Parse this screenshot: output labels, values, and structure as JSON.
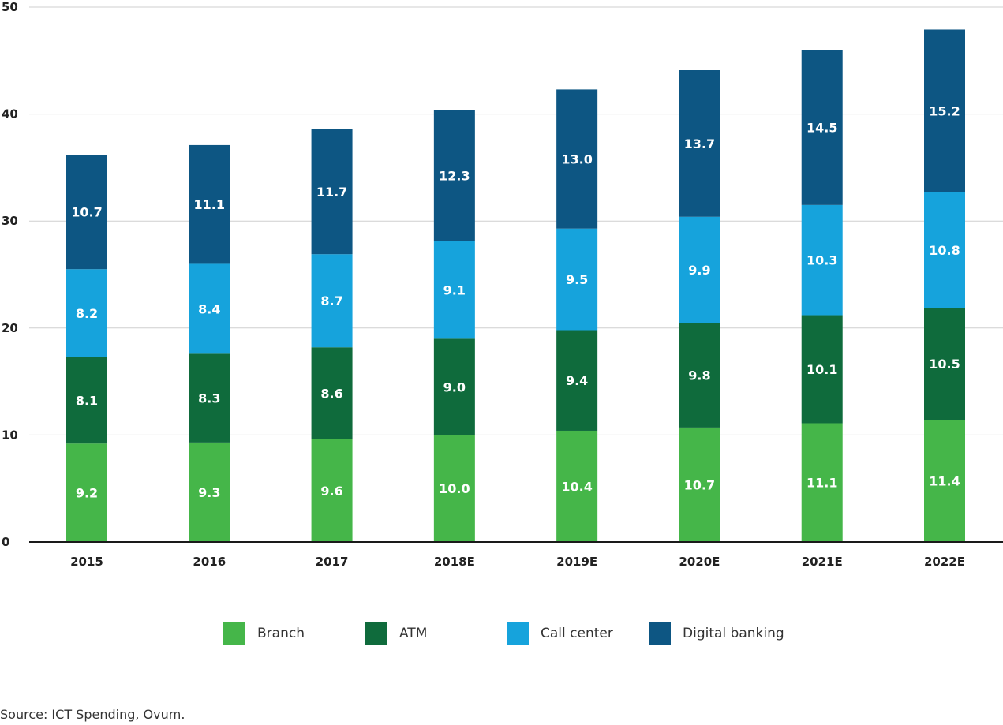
{
  "chart_data": {
    "type": "bar",
    "stacked": true,
    "title": "",
    "xlabel": "",
    "ylabel": "",
    "ylim": [
      0,
      50
    ],
    "yticks": [
      0,
      10,
      20,
      30,
      40,
      50
    ],
    "grid": true,
    "categories": [
      "2015",
      "2016",
      "2017",
      "2018E",
      "2019E",
      "2020E",
      "2021E",
      "2022E"
    ],
    "series": [
      {
        "name": "Branch",
        "color": "#45b649",
        "values": [
          9.2,
          9.3,
          9.6,
          10.0,
          10.4,
          10.7,
          11.1,
          11.4
        ]
      },
      {
        "name": "ATM",
        "color": "#0f6b3c",
        "values": [
          8.1,
          8.3,
          8.6,
          9.0,
          9.4,
          9.8,
          10.1,
          10.5
        ]
      },
      {
        "name": "Call center",
        "color": "#16a3dc",
        "values": [
          8.2,
          8.4,
          8.7,
          9.1,
          9.5,
          9.9,
          10.3,
          10.8
        ]
      },
      {
        "name": "Digital banking",
        "color": "#0d5683",
        "values": [
          10.7,
          11.1,
          11.7,
          12.3,
          13.0,
          13.7,
          14.5,
          15.2
        ]
      }
    ],
    "value_labels": [
      [
        "9.2",
        "9.3",
        "9.6",
        "10.0",
        "10.4",
        "10.7",
        "11.1",
        "11.4"
      ],
      [
        "8.1",
        "8.3",
        "8.6",
        "9.0",
        "9.4",
        "9.8",
        "10.1",
        "10.5"
      ],
      [
        "8.2",
        "8.4",
        "8.7",
        "9.1",
        "9.5",
        "9.9",
        "10.3",
        "10.8"
      ],
      [
        "10.7",
        "11.1",
        "11.7",
        "12.3",
        "13.0",
        "13.7",
        "14.5",
        "15.2"
      ]
    ],
    "legend_position": "bottom",
    "source": "Source: ICT Spending, Ovum."
  }
}
